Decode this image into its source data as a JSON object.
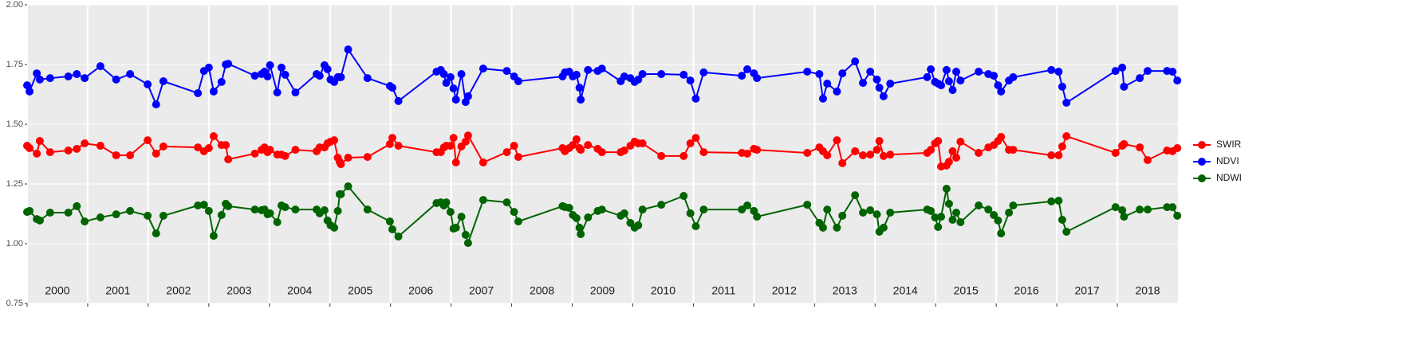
{
  "chart_data": {
    "type": "line",
    "x": [
      2000.0,
      2000.04,
      2000.16,
      2000.21,
      2000.38,
      2000.68,
      2000.82,
      2000.95,
      2001.21,
      2001.47,
      2001.7,
      2001.99,
      2002.13,
      2002.25,
      2002.82,
      2002.92,
      2003.0,
      2003.08,
      2003.21,
      2003.28,
      2003.32,
      2003.76,
      2003.87,
      2003.92,
      2003.97,
      2004.01,
      2004.13,
      2004.2,
      2004.26,
      2004.43,
      2004.78,
      2004.83,
      2004.91,
      2004.96,
      2005.01,
      2005.07,
      2005.13,
      2005.16,
      2005.18,
      2005.3,
      2005.62,
      2005.99,
      2006.03,
      2006.13,
      2006.76,
      2006.83,
      2006.88,
      2006.92,
      2006.99,
      2007.04,
      2007.08,
      2007.17,
      2007.24,
      2007.28,
      2007.53,
      2007.92,
      2008.04,
      2008.11,
      2008.84,
      2008.88,
      2008.95,
      2009.01,
      2009.07,
      2009.12,
      2009.14,
      2009.26,
      2009.42,
      2009.49,
      2009.8,
      2009.86,
      2009.96,
      2010.03,
      2010.09,
      2010.16,
      2010.47,
      2010.84,
      2010.95,
      2011.04,
      2011.17,
      2011.8,
      2011.89,
      2012.0,
      2012.05,
      2012.88,
      2013.08,
      2013.14,
      2013.21,
      2013.37,
      2013.46,
      2013.67,
      2013.8,
      2013.92,
      2014.03,
      2014.07,
      2014.14,
      2014.25,
      2014.86,
      2014.92,
      2014.99,
      2015.04,
      2015.09,
      2015.18,
      2015.22,
      2015.28,
      2015.34,
      2015.41,
      2015.71,
      2015.87,
      2015.96,
      2016.03,
      2016.08,
      2016.21,
      2016.28,
      2016.91,
      2017.03,
      2017.09,
      2017.16,
      2017.97,
      2018.08,
      2018.11,
      2018.37,
      2018.5,
      2018.82,
      2018.91,
      2018.99
    ],
    "series": [
      {
        "name": "SWIR",
        "color": "#ff0000",
        "values": [
          1.41,
          1.4,
          1.377,
          1.43,
          1.383,
          1.39,
          1.397,
          1.42,
          1.41,
          1.37,
          1.37,
          1.433,
          1.377,
          1.407,
          1.403,
          1.387,
          1.4,
          1.45,
          1.413,
          1.413,
          1.353,
          1.377,
          1.393,
          1.403,
          1.383,
          1.393,
          1.373,
          1.373,
          1.367,
          1.393,
          1.387,
          1.403,
          1.403,
          1.42,
          1.427,
          1.433,
          1.36,
          1.343,
          1.333,
          1.36,
          1.363,
          1.417,
          1.443,
          1.41,
          1.383,
          1.383,
          1.403,
          1.41,
          1.41,
          1.443,
          1.34,
          1.407,
          1.427,
          1.453,
          1.34,
          1.383,
          1.41,
          1.363,
          1.4,
          1.387,
          1.4,
          1.413,
          1.437,
          1.4,
          1.393,
          1.413,
          1.397,
          1.383,
          1.383,
          1.39,
          1.41,
          1.427,
          1.42,
          1.42,
          1.367,
          1.367,
          1.42,
          1.443,
          1.383,
          1.38,
          1.377,
          1.397,
          1.393,
          1.38,
          1.403,
          1.387,
          1.37,
          1.433,
          1.337,
          1.387,
          1.37,
          1.373,
          1.393,
          1.43,
          1.367,
          1.373,
          1.38,
          1.393,
          1.42,
          1.43,
          1.323,
          1.327,
          1.343,
          1.387,
          1.36,
          1.427,
          1.38,
          1.403,
          1.413,
          1.43,
          1.447,
          1.393,
          1.393,
          1.37,
          1.37,
          1.407,
          1.45,
          1.38,
          1.41,
          1.417,
          1.403,
          1.35,
          1.39,
          1.387,
          1.4
        ]
      },
      {
        "name": "NDVI",
        "color": "#0000ff",
        "values": [
          1.663,
          1.637,
          1.713,
          1.687,
          1.693,
          1.7,
          1.71,
          1.693,
          1.743,
          1.687,
          1.71,
          1.667,
          1.583,
          1.68,
          1.63,
          1.723,
          1.737,
          1.637,
          1.677,
          1.75,
          1.753,
          1.703,
          1.71,
          1.72,
          1.7,
          1.747,
          1.633,
          1.737,
          1.707,
          1.633,
          1.71,
          1.703,
          1.747,
          1.73,
          1.687,
          1.677,
          1.697,
          1.697,
          1.697,
          1.813,
          1.693,
          1.66,
          1.653,
          1.597,
          1.72,
          1.727,
          1.71,
          1.673,
          1.697,
          1.65,
          1.603,
          1.71,
          1.593,
          1.617,
          1.733,
          1.723,
          1.7,
          1.68,
          1.7,
          1.717,
          1.72,
          1.7,
          1.707,
          1.653,
          1.603,
          1.727,
          1.723,
          1.733,
          1.68,
          1.7,
          1.693,
          1.677,
          1.687,
          1.71,
          1.71,
          1.707,
          1.683,
          1.607,
          1.717,
          1.703,
          1.73,
          1.713,
          1.693,
          1.72,
          1.71,
          1.607,
          1.67,
          1.637,
          1.713,
          1.763,
          1.673,
          1.72,
          1.687,
          1.653,
          1.617,
          1.67,
          1.697,
          1.73,
          1.677,
          1.67,
          1.663,
          1.727,
          1.68,
          1.643,
          1.72,
          1.683,
          1.72,
          1.71,
          1.703,
          1.663,
          1.637,
          1.683,
          1.697,
          1.727,
          1.72,
          1.657,
          1.59,
          1.723,
          1.737,
          1.657,
          1.693,
          1.723,
          1.723,
          1.72,
          1.683
        ]
      },
      {
        "name": "NDWI",
        "color": "#006400",
        "values": [
          1.133,
          1.137,
          1.103,
          1.097,
          1.13,
          1.13,
          1.157,
          1.093,
          1.11,
          1.123,
          1.137,
          1.117,
          1.043,
          1.117,
          1.16,
          1.163,
          1.137,
          1.033,
          1.12,
          1.167,
          1.157,
          1.143,
          1.14,
          1.143,
          1.123,
          1.127,
          1.09,
          1.16,
          1.153,
          1.143,
          1.143,
          1.127,
          1.14,
          1.097,
          1.077,
          1.067,
          1.137,
          1.207,
          1.207,
          1.24,
          1.143,
          1.093,
          1.06,
          1.03,
          1.17,
          1.173,
          1.16,
          1.173,
          1.133,
          1.063,
          1.067,
          1.113,
          1.037,
          1.003,
          1.183,
          1.173,
          1.133,
          1.093,
          1.157,
          1.153,
          1.15,
          1.12,
          1.107,
          1.067,
          1.04,
          1.11,
          1.137,
          1.143,
          1.117,
          1.127,
          1.087,
          1.067,
          1.077,
          1.143,
          1.163,
          1.2,
          1.127,
          1.073,
          1.143,
          1.143,
          1.16,
          1.137,
          1.113,
          1.163,
          1.087,
          1.067,
          1.143,
          1.067,
          1.117,
          1.203,
          1.13,
          1.14,
          1.123,
          1.05,
          1.067,
          1.13,
          1.143,
          1.137,
          1.11,
          1.07,
          1.113,
          1.23,
          1.167,
          1.1,
          1.13,
          1.09,
          1.16,
          1.143,
          1.12,
          1.097,
          1.043,
          1.13,
          1.16,
          1.177,
          1.18,
          1.1,
          1.05,
          1.153,
          1.14,
          1.113,
          1.143,
          1.143,
          1.153,
          1.153,
          1.117
        ]
      }
    ],
    "xlim": [
      2000,
      2019
    ],
    "xticks": [
      2000,
      2001,
      2002,
      2003,
      2004,
      2005,
      2006,
      2007,
      2008,
      2009,
      2010,
      2011,
      2012,
      2013,
      2014,
      2015,
      2016,
      2017,
      2018
    ],
    "ylim": [
      0.75,
      2.0
    ],
    "yticks": [
      {
        "value": 0.75,
        "label": "0.75"
      },
      {
        "value": 1.0,
        "label": "1.00"
      },
      {
        "value": 1.25,
        "label": "1.25"
      },
      {
        "value": 1.5,
        "label": "1.50"
      },
      {
        "value": 1.75,
        "label": "1.75"
      },
      {
        "value": 2.0,
        "label": "2.00"
      }
    ],
    "grid": true,
    "legend": "right"
  }
}
